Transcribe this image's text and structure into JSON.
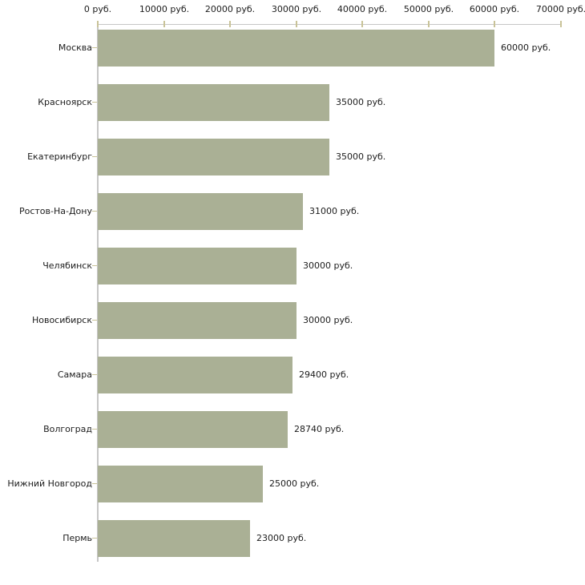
{
  "chart_data": {
    "type": "bar",
    "orientation": "horizontal",
    "title": "",
    "categories": [
      "Москва",
      "Красноярск",
      "Екатеринбург",
      "Ростов-На-Дону",
      "Челябинск",
      "Новосибирск",
      "Самара",
      "Волгоград",
      "Нижний Новгород",
      "Пермь"
    ],
    "values": [
      60000,
      35000,
      35000,
      31000,
      30000,
      30000,
      29400,
      28740,
      25000,
      23000
    ],
    "value_labels": [
      "60000 руб.",
      "35000 руб.",
      "35000 руб.",
      "31000 руб.",
      "30000 руб.",
      "30000 руб.",
      "29400 руб.",
      "28740 руб.",
      "25000 руб.",
      "23000 руб."
    ],
    "x_axis": {
      "position": "top",
      "range": [
        0,
        70000
      ],
      "tick_values": [
        0,
        10000,
        20000,
        30000,
        40000,
        50000,
        60000,
        70000
      ],
      "tick_labels": [
        "0 руб.",
        "10000 руб.",
        "20000 руб.",
        "30000 руб.",
        "40000 руб.",
        "50000 руб.",
        "60000 руб.",
        "70000 руб."
      ]
    },
    "legend": null,
    "grid": false,
    "colors": {
      "bar": "#aab095",
      "tick": "#c9c398",
      "axis_line": "#c6c6c6",
      "text": "#1c1c1c",
      "background": "#ffffff"
    }
  }
}
